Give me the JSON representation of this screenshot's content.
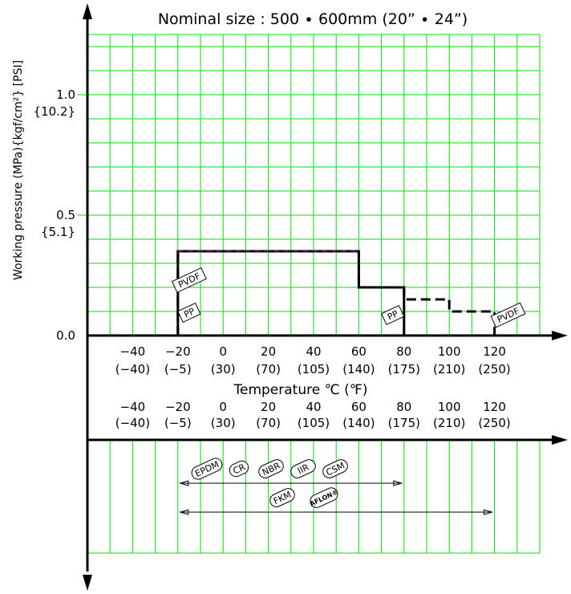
{
  "chart_data": {
    "type": "line",
    "title": "Nominal size : 500 ∙ 600mm (20” ∙ 24”)",
    "xlabel": "Temperature ℃ (℉)",
    "ylabel": "Working pressure (MPa){kgf/cm²} [PSI]",
    "xlim": [
      -60,
      140
    ],
    "ylim": [
      0,
      1.25
    ],
    "grid": true,
    "grid_color": "#00e000",
    "x_ticks": [
      {
        "c": "−40",
        "f": "(−40)",
        "x": -40
      },
      {
        "c": "−20",
        "f": "(−5)",
        "x": -20
      },
      {
        "c": "0",
        "f": "(30)",
        "x": 0
      },
      {
        "c": "20",
        "f": "(70)",
        "x": 20
      },
      {
        "c": "40",
        "f": "(105)",
        "x": 40
      },
      {
        "c": "60",
        "f": "(140)",
        "x": 60
      },
      {
        "c": "80",
        "f": "(175)",
        "x": 80
      },
      {
        "c": "100",
        "f": "(210)",
        "x": 100
      },
      {
        "c": "120",
        "f": "(250)",
        "x": 120
      }
    ],
    "y_ticks": [
      {
        "mpa": "0.0",
        "kgf": "",
        "y": 0
      },
      {
        "mpa": "0.5",
        "kgf": "{5.1}",
        "y": 0.5
      },
      {
        "mpa": "1.0",
        "kgf": "{10.2}",
        "y": 1.0
      }
    ],
    "series": [
      {
        "name": "PP",
        "color": "#000000",
        "style": "solid",
        "x": [
          -20,
          -20,
          60,
          60,
          80,
          80
        ],
        "y": [
          0,
          0.35,
          0.35,
          0.2,
          0.2,
          0
        ]
      },
      {
        "name": "PVDF",
        "color": "#000000",
        "style": "dashed",
        "x": [
          -20,
          -20,
          60,
          60,
          80,
          80,
          100,
          100,
          120,
          120
        ],
        "y": [
          0,
          0.35,
          0.35,
          0.2,
          0.2,
          0.15,
          0.15,
          0.1,
          0.1,
          0
        ]
      }
    ],
    "annotations": [
      {
        "text": "PVDF",
        "x": -15,
        "y": 0.23
      },
      {
        "text": "PP",
        "x": -15,
        "y": 0.095
      },
      {
        "text": "PP",
        "x": 75,
        "y": 0.085
      },
      {
        "text": "PVDF",
        "x": 126,
        "y": 0.085
      }
    ],
    "seal_ranges": [
      {
        "materials": [
          "EPDM",
          "CR",
          "NBR",
          "IIR",
          "CSM"
        ],
        "x_from": -20,
        "x_to": 80
      },
      {
        "materials": [
          "FKM",
          "AFLON®"
        ],
        "x_from": -20,
        "x_to": 120
      }
    ]
  }
}
